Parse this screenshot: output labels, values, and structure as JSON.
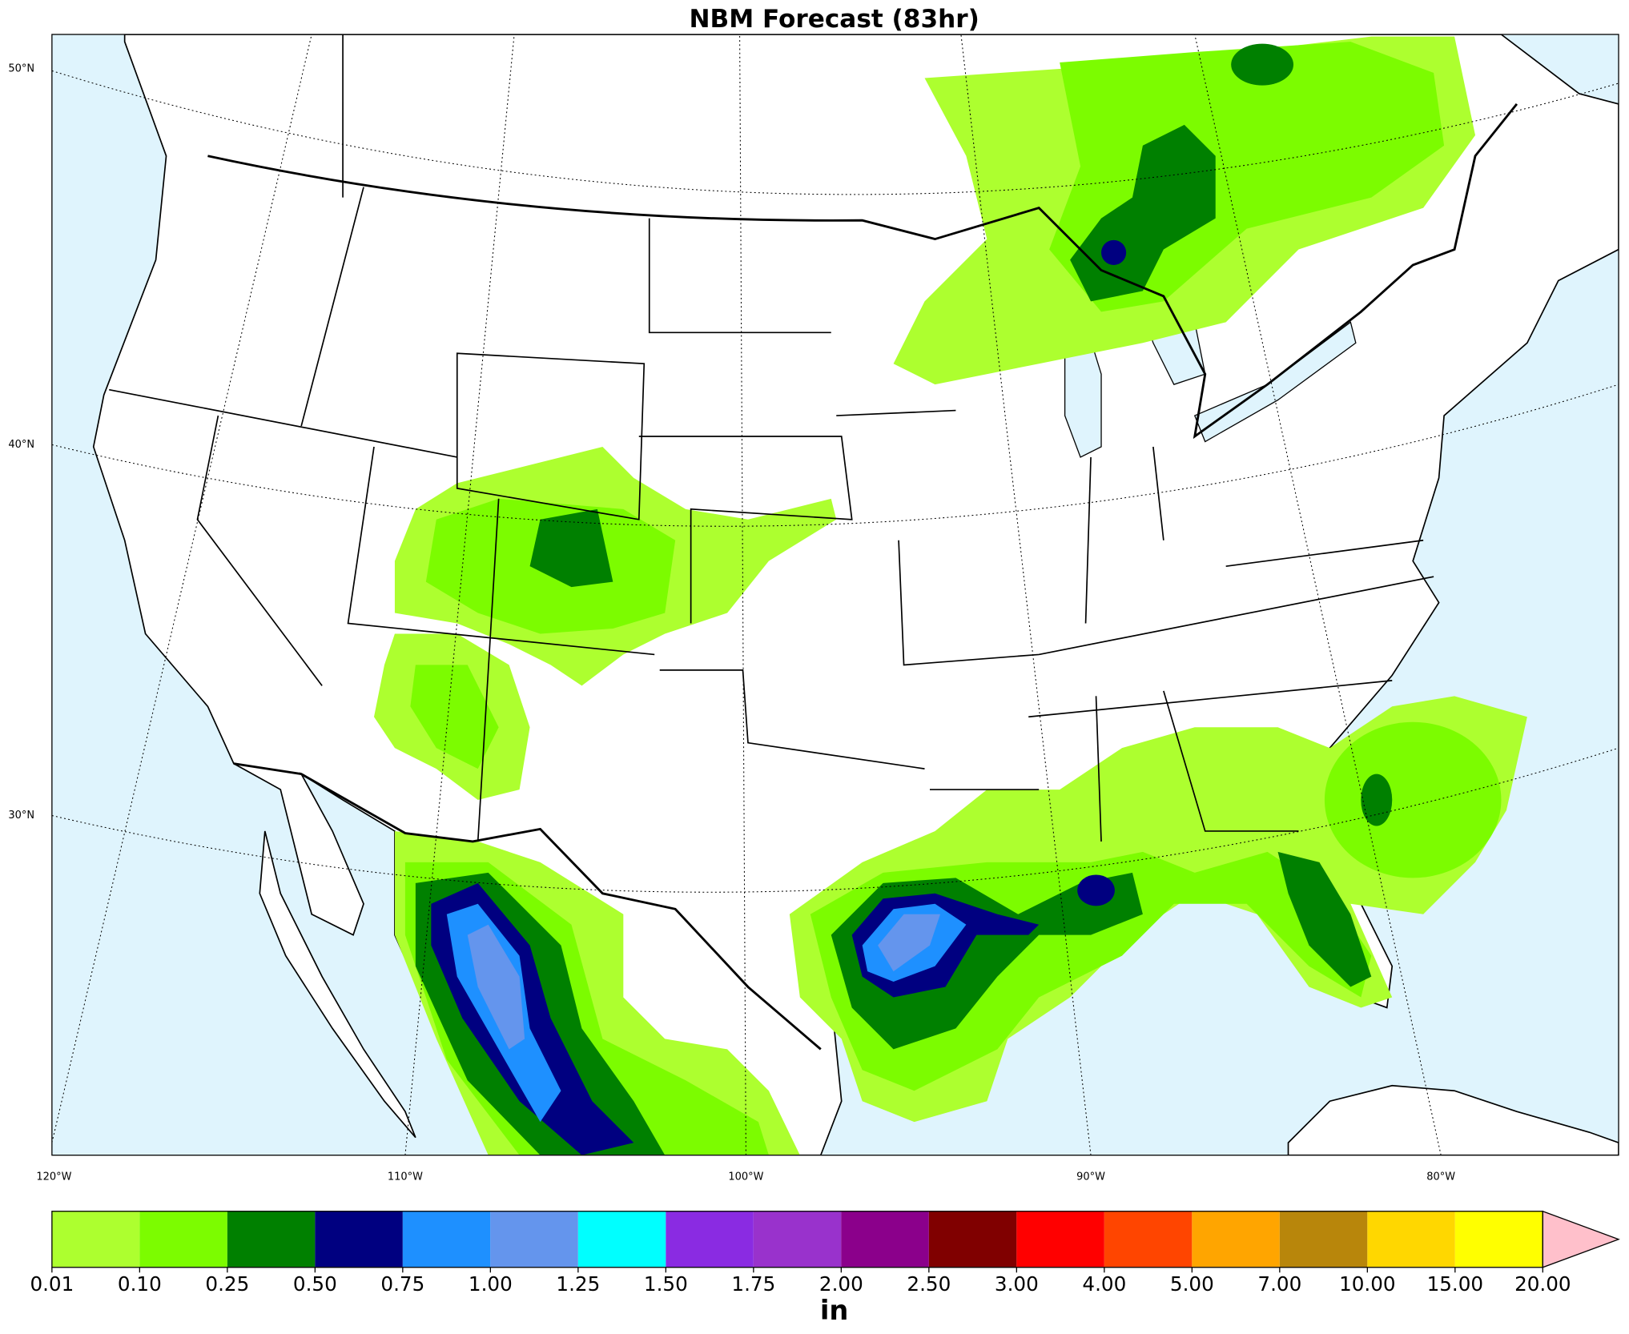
{
  "title": "NBM Forecast (83hr)",
  "map": {
    "lat_labels": [
      "50°N",
      "40°N",
      "30°N"
    ],
    "lon_labels": [
      "120°W",
      "110°W",
      "100°W",
      "90°W",
      "80°W"
    ]
  },
  "colorbar": {
    "labels": [
      "0.01",
      "0.10",
      "0.25",
      "0.50",
      "0.75",
      "1.00",
      "1.25",
      "1.50",
      "1.75",
      "2.00",
      "2.50",
      "3.00",
      "4.00",
      "5.00",
      "7.00",
      "10.00",
      "15.00",
      "20.00"
    ],
    "colors": [
      "#adff2f",
      "#7cfc00",
      "#008000",
      "#000080",
      "#1e90ff",
      "#6495ed",
      "#00ffff",
      "#8a2be2",
      "#9932cc",
      "#8b008b",
      "#800000",
      "#ff0000",
      "#ff4500",
      "#ffa500",
      "#b8860b",
      "#ffd700",
      "#ffff00"
    ],
    "extend_color": "#ffc0cb",
    "unit": "in"
  }
}
